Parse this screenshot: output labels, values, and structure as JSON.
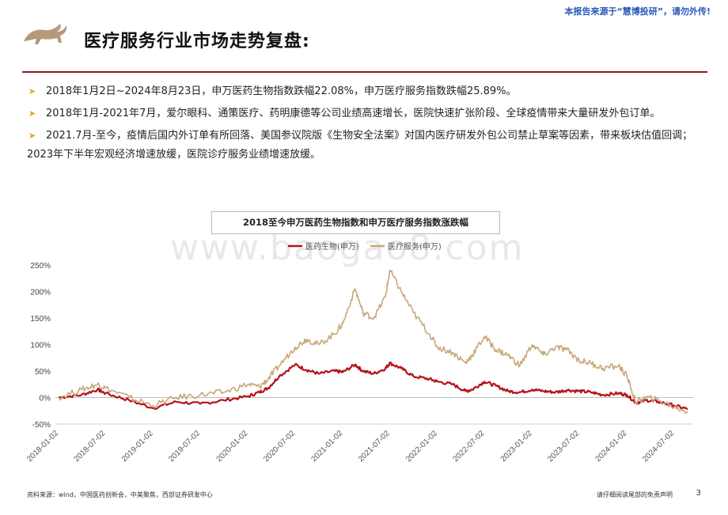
{
  "header": {
    "note": "本报告来源于“慧博投研”，请勿外传!",
    "title": "医疗服务行业市场走势复盘:"
  },
  "bullets": [
    "2018年1月2日~2024年8月23日，申万医药生物指数跌幅22.08%，申万医疗服务指数跌幅25.89%。",
    "2018年1月-2021年7月，爱尔眼科、通策医疗、药明康德等公司业绩高速增长，医院快速扩张阶段、全球疫情带来大量研发外包订单。",
    " 2021.7月-至今，疫情后国内外订单有所回落、美国参议院版《生物安全法案》对国内医疗研发外包公司禁止草案等因素，带来板块估值回调；2023年下半年宏观经济增速放缓，医院诊疗服务业绩增速放缓。"
  ],
  "watermark": "www.baogao8.com",
  "colors": {
    "accent": "#8b1c1f",
    "bullet": "#e2a22a",
    "s1": "#b5121b",
    "s2": "#c8a77a"
  },
  "chart_data": {
    "type": "line",
    "title": "2018至今申万医药生物指数和申万医疗服务指数涨跌幅",
    "ylim": [
      -50,
      250
    ],
    "yticks": [
      "-50%",
      "0%",
      "50%",
      "100%",
      "150%",
      "200%",
      "250%"
    ],
    "ytick_values": [
      -50,
      0,
      50,
      100,
      150,
      200,
      250
    ],
    "xticks": [
      "2018-01-02",
      "2018-07-02",
      "2019-01-02",
      "2019-07-02",
      "2020-01-02",
      "2020-07-02",
      "2021-01-02",
      "2021-07-02",
      "2022-01-02",
      "2022-07-02",
      "2023-01-02",
      "2023-07-02",
      "2024-01-02",
      "2024-07-02"
    ],
    "legend_position": "top-center",
    "x": [
      "2018-01-02",
      "2018-04-01",
      "2018-06-01",
      "2018-07-02",
      "2018-10-01",
      "2019-01-02",
      "2019-04-01",
      "2019-07-02",
      "2019-10-01",
      "2020-01-02",
      "2020-02-15",
      "2020-03-20",
      "2020-05-01",
      "2020-07-02",
      "2020-08-15",
      "2020-10-01",
      "2020-12-01",
      "2021-01-02",
      "2021-02-18",
      "2021-03-20",
      "2021-05-01",
      "2021-06-15",
      "2021-07-02",
      "2021-08-15",
      "2021-10-01",
      "2021-12-01",
      "2022-01-02",
      "2022-03-01",
      "2022-04-20",
      "2022-05-15",
      "2022-07-02",
      "2022-08-15",
      "2022-10-01",
      "2022-11-15",
      "2023-01-02",
      "2023-02-15",
      "2023-04-01",
      "2023-05-15",
      "2023-07-02",
      "2023-08-15",
      "2023-10-01",
      "2023-12-01",
      "2024-01-02",
      "2024-02-06",
      "2024-03-15",
      "2024-05-01",
      "2024-07-02",
      "2024-08-23"
    ],
    "series": [
      {
        "name": "医药生物(申万)",
        "color": "#b5121b",
        "values": [
          0,
          5,
          15,
          8,
          -5,
          -20,
          -8,
          -12,
          -5,
          2,
          10,
          18,
          40,
          62,
          52,
          45,
          50,
          48,
          62,
          50,
          45,
          55,
          65,
          55,
          40,
          35,
          30,
          25,
          12,
          15,
          30,
          22,
          12,
          10,
          15,
          12,
          10,
          14,
          12,
          10,
          5,
          8,
          5,
          -10,
          -5,
          -8,
          -15,
          -22
        ]
      },
      {
        "name": "医疗服务(申万)",
        "color": "#c8a77a",
        "values": [
          0,
          15,
          25,
          18,
          0,
          -15,
          0,
          5,
          10,
          25,
          20,
          35,
          60,
          95,
          110,
          100,
          120,
          140,
          205,
          160,
          150,
          190,
          240,
          200,
          160,
          120,
          95,
          85,
          65,
          80,
          115,
          90,
          80,
          60,
          100,
          80,
          95,
          90,
          70,
          65,
          55,
          60,
          40,
          -10,
          0,
          -5,
          -18,
          -26
        ]
      }
    ]
  },
  "footer": {
    "source": "资料来源：wind，中国医药创新会，中美聚焦，西部证券研发中心",
    "disclaimer": "请仔细阅读尾部的免责声明",
    "page": "3"
  }
}
